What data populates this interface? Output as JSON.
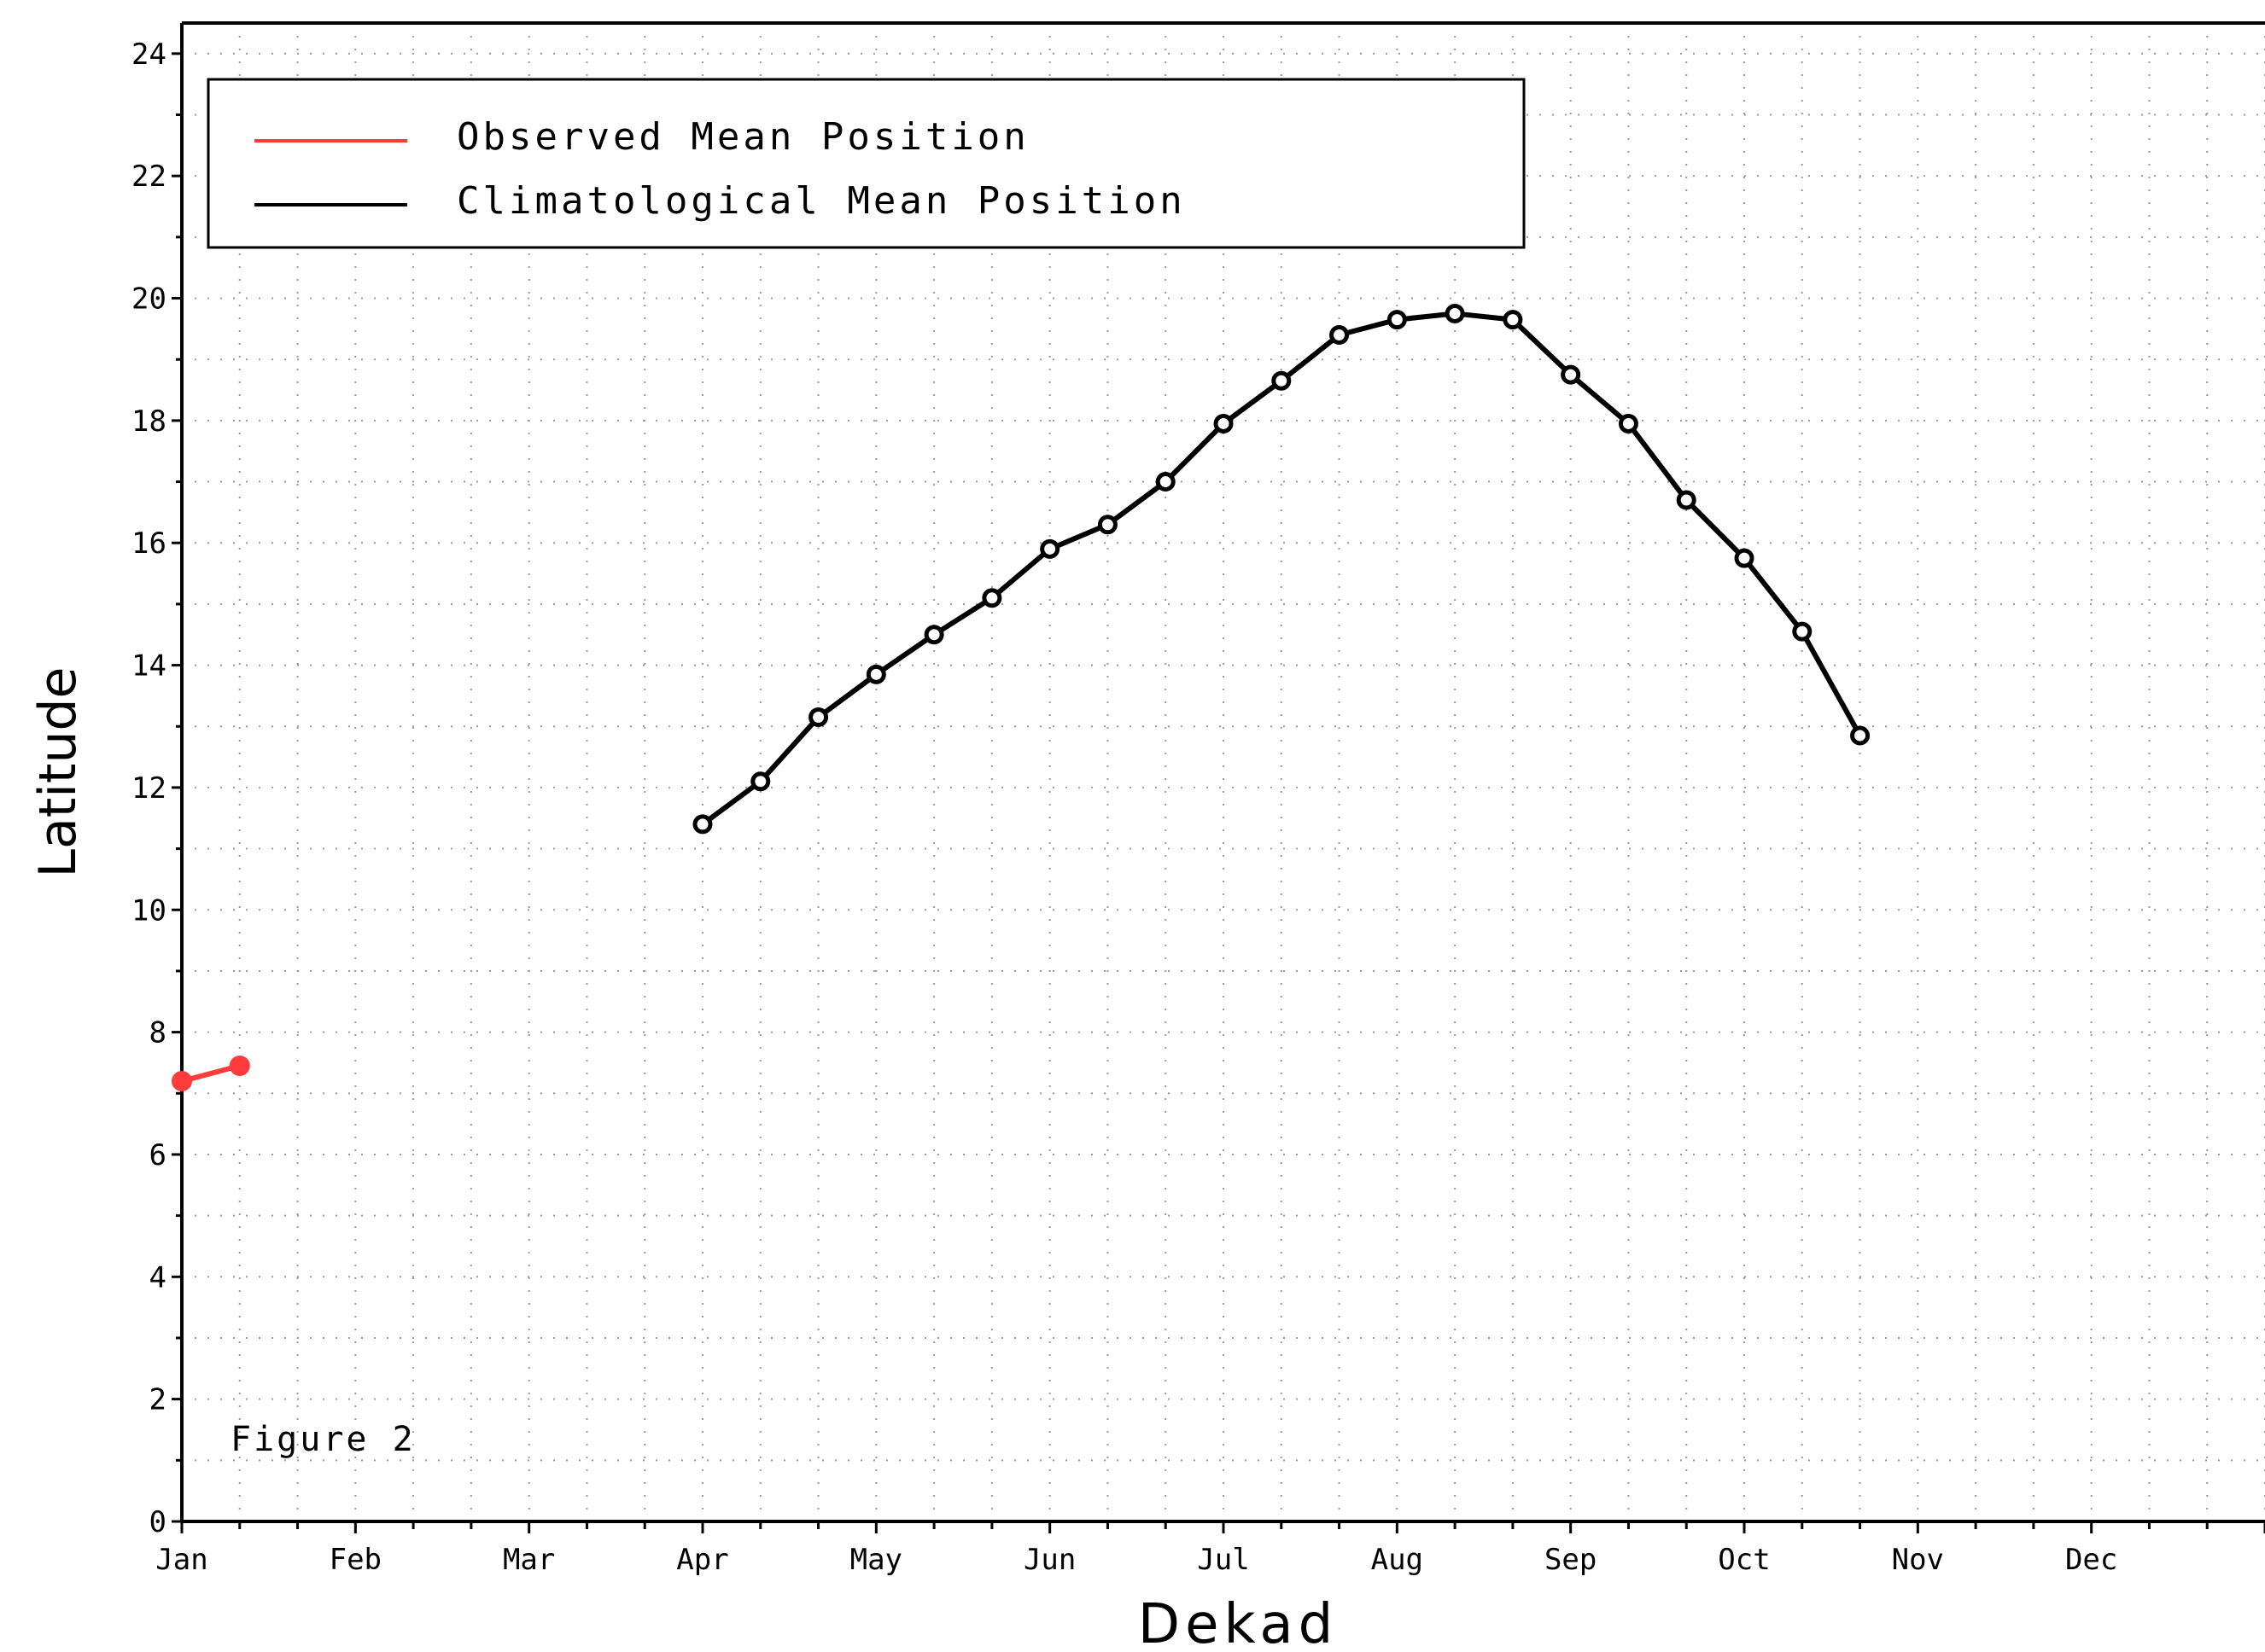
{
  "chart_data": {
    "type": "line",
    "title": "",
    "xlabel": "Dekad",
    "ylabel": "Latitude",
    "xlim": [
      0,
      36
    ],
    "ylim": [
      0,
      24.5
    ],
    "grid": true,
    "legend_position": "top-left",
    "x_tick_labels": [
      "Jan",
      "Feb",
      "Mar",
      "Apr",
      "May",
      "Jun",
      "Jul",
      "Aug",
      "Sep",
      "Oct",
      "Nov",
      "Dec"
    ],
    "x_tick_positions": [
      0,
      3,
      6,
      9,
      12,
      15,
      18,
      21,
      24,
      27,
      30,
      33
    ],
    "y_ticks": [
      0,
      2,
      4,
      6,
      8,
      10,
      12,
      14,
      16,
      18,
      20,
      22,
      24
    ],
    "annotation": "Figure 2",
    "series": [
      {
        "name": "Observed Mean Position",
        "color": "#ff3b3b",
        "marker": "filled-circle",
        "x": [
          0,
          1
        ],
        "y": [
          7.2,
          7.45
        ]
      },
      {
        "name": "Climatological Mean Position",
        "color": "#000000",
        "marker": "open-circle",
        "x": [
          9,
          10,
          11,
          12,
          13,
          14,
          15,
          16,
          17,
          18,
          19,
          20,
          21,
          22,
          23,
          24,
          25,
          26,
          27,
          28,
          29
        ],
        "y": [
          11.4,
          12.1,
          13.15,
          13.85,
          14.5,
          15.1,
          15.9,
          16.3,
          17.0,
          17.95,
          18.65,
          19.4,
          19.65,
          19.75,
          19.65,
          18.75,
          17.95,
          16.7,
          15.75,
          14.55,
          12.85
        ]
      }
    ]
  }
}
